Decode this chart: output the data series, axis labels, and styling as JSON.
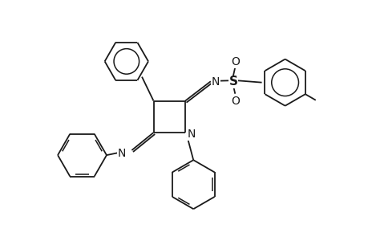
{
  "background_color": "#ffffff",
  "line_color": "#1a1a1a",
  "line_width": 1.3,
  "font_size": 10,
  "figsize": [
    4.6,
    3.0
  ],
  "dpi": 100,
  "xlim": [
    -3.8,
    5.2
  ],
  "ylim": [
    -3.2,
    3.2
  ]
}
